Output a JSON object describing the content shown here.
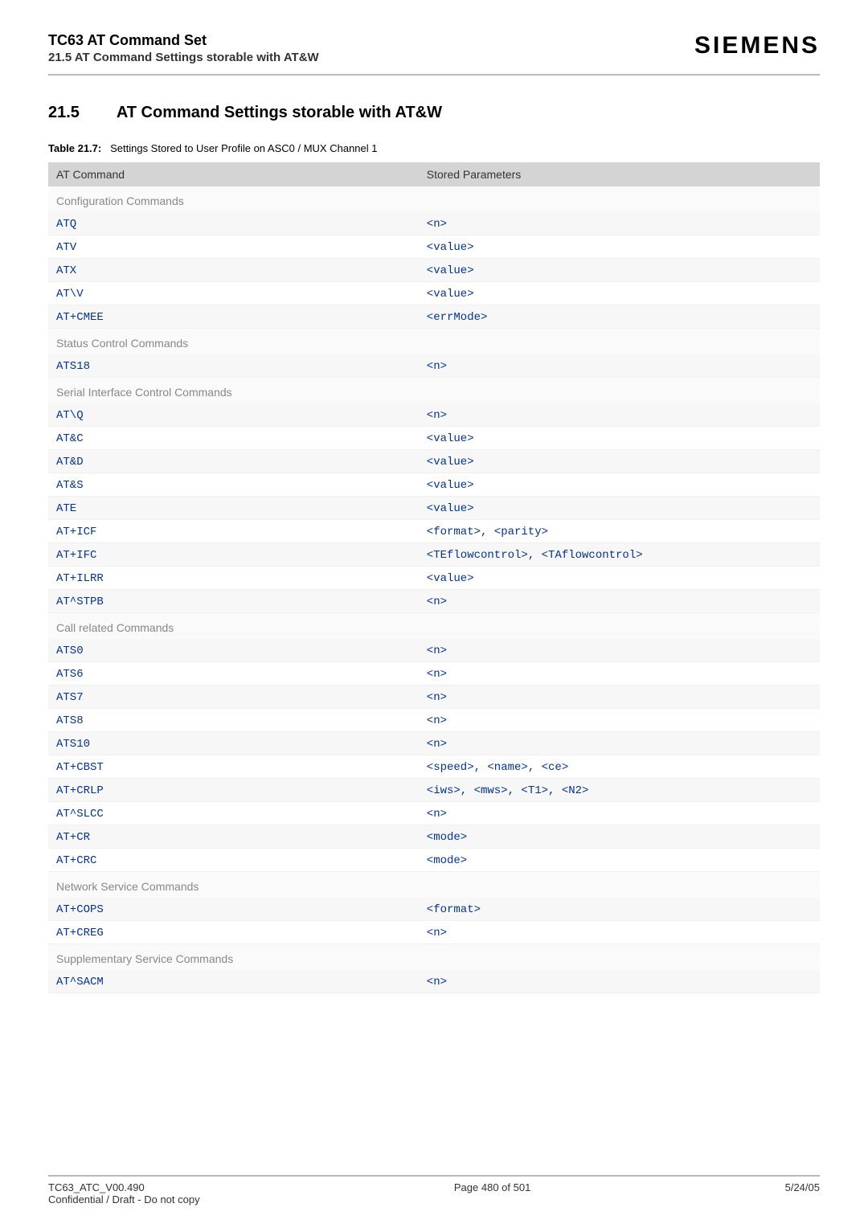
{
  "colors": {
    "rule": "#bababa",
    "header_bg": "#d4d4d4",
    "group_bg": "#fafafa",
    "group_text": "#888888",
    "row_alt_bg": "#f7f7f7",
    "mono_text": "#003399"
  },
  "typography": {
    "body_family": "Arial, Helvetica, sans-serif",
    "mono_family": "Courier New, Courier, monospace",
    "header_title_pt": 18,
    "brand_pt": 30,
    "section_heading_pt": 20,
    "table_text_pt": 14
  },
  "header": {
    "title": "TC63 AT Command Set",
    "subtitle": "21.5 AT Command Settings storable with AT&W",
    "brand": "SIEMENS"
  },
  "section": {
    "number": "21.5",
    "title": "AT Command Settings storable with AT&W"
  },
  "table": {
    "caption_bold": "Table 21.7:",
    "caption_text": "Settings Stored to User Profile on ASC0 / MUX Channel 1",
    "col1": "AT Command",
    "col2": "Stored Parameters",
    "groups": [
      {
        "label": "Configuration Commands",
        "rows": [
          {
            "cmd": "ATQ",
            "param": "<n>"
          },
          {
            "cmd": "ATV",
            "param": "<value>"
          },
          {
            "cmd": "ATX",
            "param": "<value>"
          },
          {
            "cmd": "AT\\V",
            "param": "<value>"
          },
          {
            "cmd": "AT+CMEE",
            "param": "<errMode>"
          }
        ]
      },
      {
        "label": "Status Control Commands",
        "rows": [
          {
            "cmd": "ATS18",
            "param": "<n>"
          }
        ]
      },
      {
        "label": "Serial Interface Control Commands",
        "rows": [
          {
            "cmd": "AT\\Q",
            "param": "<n>"
          },
          {
            "cmd": "AT&C",
            "param": "<value>"
          },
          {
            "cmd": "AT&D",
            "param": "<value>"
          },
          {
            "cmd": "AT&S",
            "param": "<value>"
          },
          {
            "cmd": "ATE",
            "param": "<value>"
          },
          {
            "cmd": "AT+ICF",
            "param": "<format>, <parity>"
          },
          {
            "cmd": "AT+IFC",
            "param": "<TEflowcontrol>, <TAflowcontrol>"
          },
          {
            "cmd": "AT+ILRR",
            "param": "<value>"
          },
          {
            "cmd": "AT^STPB",
            "param": "<n>"
          }
        ]
      },
      {
        "label": "Call related Commands",
        "rows": [
          {
            "cmd": "ATS0",
            "param": "<n>"
          },
          {
            "cmd": "ATS6",
            "param": "<n>"
          },
          {
            "cmd": "ATS7",
            "param": "<n>"
          },
          {
            "cmd": "ATS8",
            "param": "<n>"
          },
          {
            "cmd": "ATS10",
            "param": "<n>"
          },
          {
            "cmd": "AT+CBST",
            "param": "<speed>, <name>, <ce>"
          },
          {
            "cmd": "AT+CRLP",
            "param": "<iws>, <mws>, <T1>, <N2>"
          },
          {
            "cmd": "AT^SLCC",
            "param": "<n>"
          },
          {
            "cmd": "AT+CR",
            "param": "<mode>"
          },
          {
            "cmd": "AT+CRC",
            "param": "<mode>"
          }
        ]
      },
      {
        "label": "Network Service Commands",
        "rows": [
          {
            "cmd": "AT+COPS",
            "param": "<format>"
          },
          {
            "cmd": "AT+CREG",
            "param": "<n>"
          }
        ]
      },
      {
        "label": "Supplementary Service Commands",
        "rows": [
          {
            "cmd": "AT^SACM",
            "param": "<n>"
          }
        ]
      }
    ]
  },
  "footer": {
    "left1": "TC63_ATC_V00.490",
    "left2": "Confidential / Draft - Do not copy",
    "center": "Page 480 of 501",
    "right": "5/24/05"
  }
}
